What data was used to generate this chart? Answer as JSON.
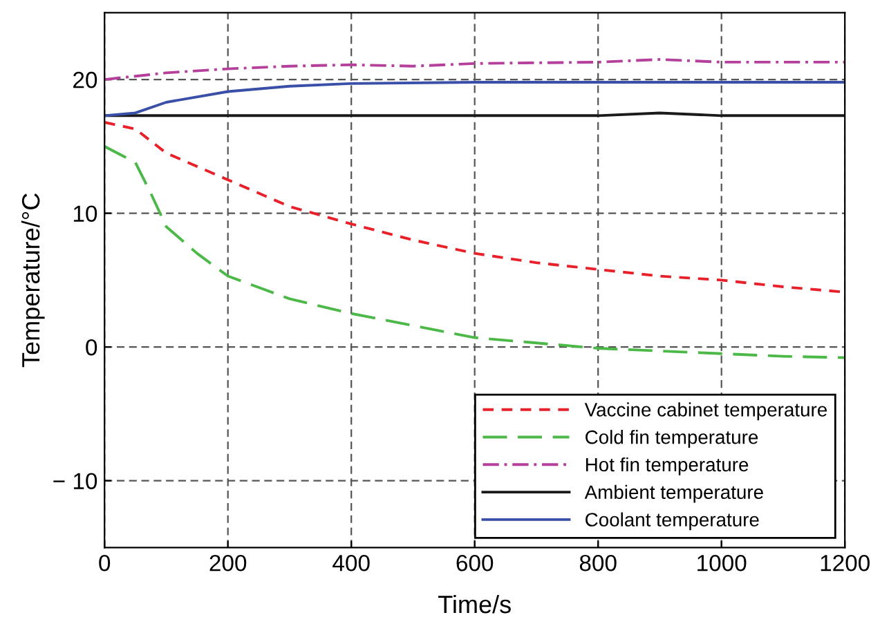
{
  "chart_data": {
    "type": "line",
    "xlabel": "Time/s",
    "ylabel": "Temperature/°C",
    "xlim": [
      0,
      1200
    ],
    "xticks": [
      0,
      200,
      400,
      600,
      800,
      1000,
      1200
    ],
    "ylim": [
      -15,
      25
    ],
    "yticks": [
      {
        "value": -10,
        "label": "− 10"
      },
      0,
      10,
      20
    ],
    "grid": true,
    "legend": "bottom right",
    "marker": "none",
    "series": [
      {
        "name": "Vaccine cabinet temperature",
        "color": "#e8202a",
        "line_style": "dashed",
        "x": [
          0,
          50,
          100,
          200,
          300,
          400,
          500,
          600,
          700,
          800,
          900,
          1000,
          1100,
          1200
        ],
        "values": [
          16.8,
          16.3,
          14.5,
          12.5,
          10.5,
          9.2,
          8.0,
          7.0,
          6.3,
          5.8,
          5.3,
          5.0,
          4.5,
          4.1
        ]
      },
      {
        "name": "Cold fin temperature",
        "color": "#4cb848",
        "line_style": "dashed",
        "x": [
          0,
          50,
          75,
          100,
          150,
          200,
          300,
          400,
          500,
          600,
          700,
          800,
          900,
          1000,
          1100,
          1200
        ],
        "values": [
          15.0,
          13.8,
          11.5,
          9.0,
          7.0,
          5.3,
          3.6,
          2.5,
          1.6,
          0.7,
          0.3,
          -0.1,
          -0.3,
          -0.5,
          -0.7,
          -0.8
        ]
      },
      {
        "name": "Hot fin temperature",
        "color": "#b5409c",
        "line_style": "dashdot",
        "x": [
          0,
          100,
          200,
          300,
          400,
          500,
          600,
          800,
          900,
          1000,
          1200
        ],
        "values": [
          20.0,
          20.5,
          20.8,
          21.0,
          21.1,
          21.0,
          21.2,
          21.3,
          21.5,
          21.3,
          21.3
        ]
      },
      {
        "name": "Ambient temperature",
        "color": "#1a1a1a",
        "line_style": "solid",
        "x": [
          0,
          800,
          900,
          1000,
          1200
        ],
        "values": [
          17.3,
          17.3,
          17.5,
          17.3,
          17.3
        ]
      },
      {
        "name": "Coolant temperature",
        "color": "#3a4fa8",
        "line_style": "solid",
        "x": [
          0,
          50,
          100,
          200,
          300,
          400,
          600,
          1200
        ],
        "values": [
          17.3,
          17.5,
          18.3,
          19.1,
          19.5,
          19.7,
          19.8,
          19.8
        ]
      }
    ]
  }
}
